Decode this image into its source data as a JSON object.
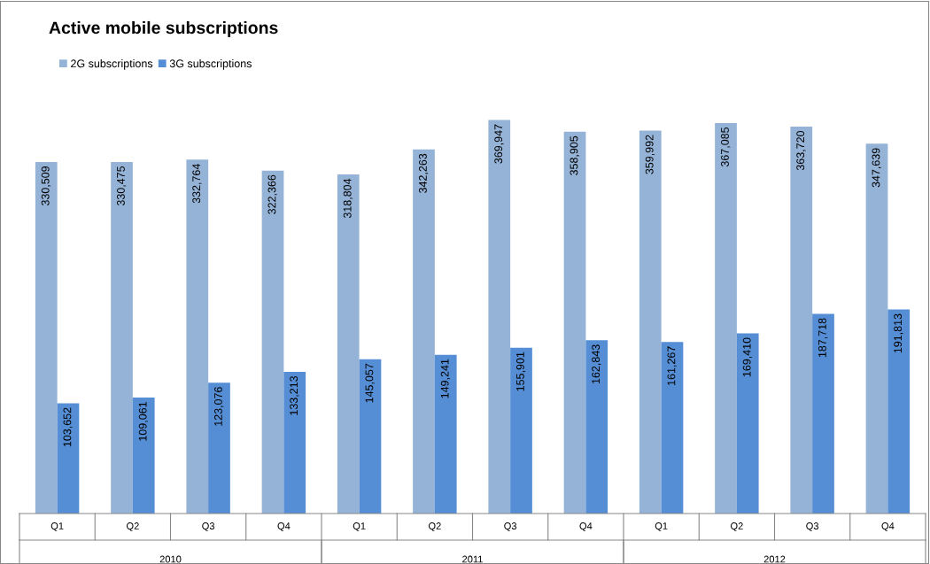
{
  "chart_data": {
    "type": "bar",
    "title": "Active mobile subscriptions",
    "categories": [
      "Q1",
      "Q2",
      "Q3",
      "Q4",
      "Q1",
      "Q2",
      "Q3",
      "Q4",
      "Q1",
      "Q2",
      "Q3",
      "Q4"
    ],
    "series": [
      {
        "name": "2G subscriptions",
        "color": "#95b3d7",
        "values": [
          330509,
          330475,
          332764,
          322366,
          318804,
          342263,
          369947,
          358905,
          359992,
          367085,
          363720,
          347639
        ],
        "value_labels": [
          "330,509",
          "330,475",
          "332,764",
          "322,366",
          "318,804",
          "342,263",
          "369,947",
          "358,905",
          "359,992",
          "367,085",
          "363,720",
          "347,639"
        ]
      },
      {
        "name": "3G subscriptions",
        "color": "#558ed5",
        "values": [
          103652,
          109061,
          123076,
          133213,
          145057,
          149241,
          155901,
          162843,
          161267,
          169410,
          187718,
          191813
        ],
        "value_labels": [
          "103,652",
          "109,061",
          "123,076",
          "133,213",
          "145,057",
          "149,241",
          "155,901",
          "162,843",
          "161,267",
          "169,410",
          "187,718",
          "191,813"
        ]
      }
    ],
    "annotations": [
      "2010",
      "2011",
      "2012"
    ],
    "legend": "top left",
    "tick_labels": "x"
  }
}
